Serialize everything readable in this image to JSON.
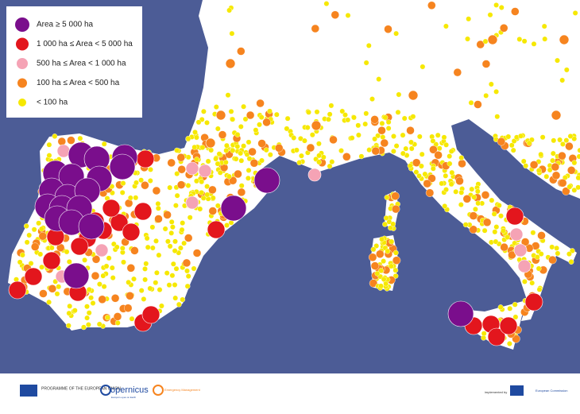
{
  "legend": {
    "items": [
      {
        "label": "Area ≥ 5 000 ha",
        "color": "#7a0e8c"
      },
      {
        "label": "1 000 ha ≤ Area < 5 000 ha",
        "color": "#e3161d"
      },
      {
        "label": "500 ha ≤ Area < 1 000 ha",
        "color": "#f5a3b5"
      },
      {
        "label": "100 ha ≤ Area < 500 ha",
        "color": "#f6841f"
      },
      {
        "label": "< 100 ha",
        "color": "#f6e800"
      }
    ]
  },
  "footer": {
    "eu_programme": "PROGRAMME OF THE EUROPEAN UNION",
    "copernicus": "opernicus",
    "copernicus_sub": "Europe's eyes on Earth",
    "ems": "Emergency Management",
    "implemented_by": "implemented by",
    "commission": "European Commission"
  }
}
